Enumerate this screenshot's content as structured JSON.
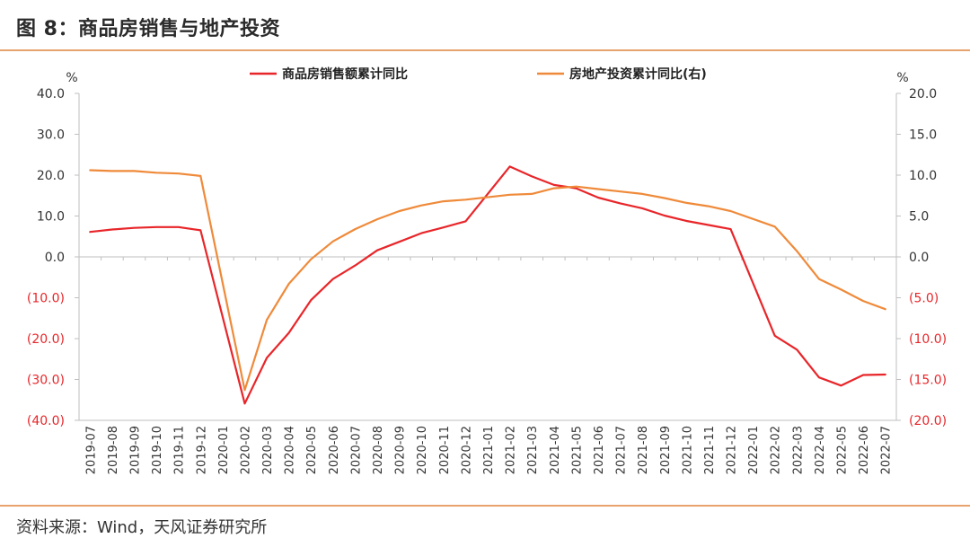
{
  "title": "图 8：商品房销售与地产投资",
  "source": "资料来源：Wind，天风证券研究所",
  "colors": {
    "rule": "#e8a26b",
    "series_red": "#e8262a",
    "series_orange": "#ef8a3a",
    "negative_tick": "#e8262a",
    "text": "#333333"
  },
  "chart_data": {
    "type": "line",
    "left_unit": "%",
    "right_unit": "%",
    "left_ylim": [
      -40,
      40
    ],
    "right_ylim": [
      -20,
      20
    ],
    "left_ticks": [
      "40.0",
      "30.0",
      "20.0",
      "10.0",
      "0.0",
      "(10.0)",
      "(20.0)",
      "(30.0)",
      "(40.0)"
    ],
    "right_ticks": [
      "20.0",
      "15.0",
      "10.0",
      "5.0",
      "0.0",
      "(5.0)",
      "(10.0)",
      "(15.0)",
      "(20.0)"
    ],
    "grid": false,
    "legend_position": "top",
    "x": [
      "2019-07",
      "2019-08",
      "2019-09",
      "2019-10",
      "2019-11",
      "2019-12",
      "2020-01",
      "2020-02",
      "2020-03",
      "2020-04",
      "2020-05",
      "2020-06",
      "2020-07",
      "2020-08",
      "2020-09",
      "2020-10",
      "2020-11",
      "2020-12",
      "2021-01",
      "2021-02",
      "2021-03",
      "2021-04",
      "2021-05",
      "2021-06",
      "2021-07",
      "2021-08",
      "2021-09",
      "2021-10",
      "2021-11",
      "2021-12",
      "2022-01",
      "2022-02",
      "2022-03",
      "2022-04",
      "2022-05",
      "2022-06",
      "2022-07"
    ],
    "series": [
      {
        "name": "商品房销售额累计同比",
        "axis": "left",
        "color": "#e8262a",
        "values": [
          6.1,
          6.7,
          7.1,
          7.3,
          7.3,
          6.5,
          null,
          -35.9,
          -24.7,
          -18.6,
          -10.6,
          -5.4,
          -2.1,
          1.6,
          3.7,
          5.8,
          7.2,
          8.7,
          null,
          22.1,
          19.7,
          17.6,
          16.8,
          14.5,
          13.1,
          11.9,
          10.1,
          8.8,
          7.8,
          6.8,
          null,
          -19.3,
          -22.7,
          -29.5,
          -31.5,
          -28.9,
          -28.8
        ]
      },
      {
        "name": "房地产投资累计同比(右)",
        "axis": "right",
        "color": "#ef8a3a",
        "values": [
          10.6,
          10.5,
          10.5,
          10.3,
          10.2,
          9.9,
          null,
          -16.3,
          -7.7,
          -3.3,
          -0.3,
          1.9,
          3.4,
          4.6,
          5.6,
          6.3,
          6.8,
          7.0,
          null,
          7.6,
          7.7,
          8.4,
          8.6,
          8.3,
          8.0,
          7.7,
          7.2,
          6.6,
          6.2,
          5.6,
          null,
          3.7,
          0.7,
          -2.7,
          -4.0,
          -5.4,
          -6.4
        ]
      }
    ]
  }
}
